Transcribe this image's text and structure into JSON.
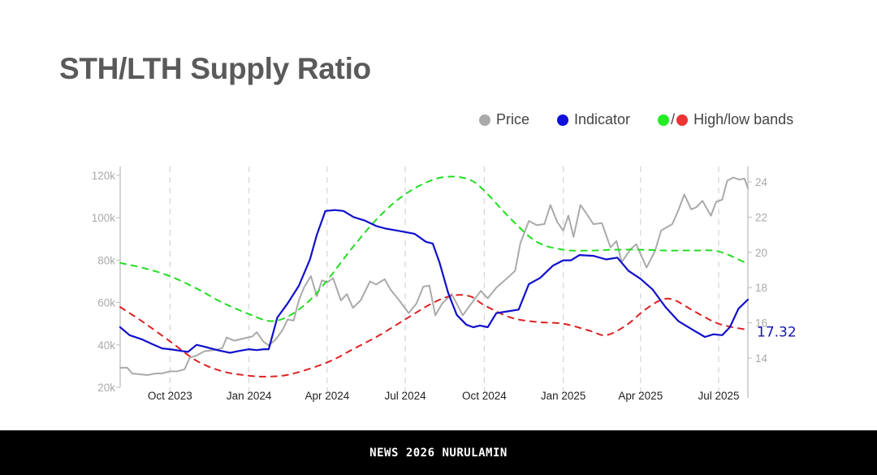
{
  "title": "STH/LTH Supply Ratio",
  "legend": [
    {
      "label": "Price",
      "color": "#aaaaaa"
    },
    {
      "label": "Indicator",
      "color": "#1010dd"
    },
    {
      "label": "High/low bands",
      "color_high": "#22ee22",
      "color_low": "#ee3333"
    }
  ],
  "legend_slash": "/",
  "banner": "NEWS 2026 NURULAMIN",
  "chart_data": {
    "type": "line",
    "title": "STH/LTH Supply Ratio",
    "x_range": [
      "2023-08-04",
      "2025-08-04"
    ],
    "x_ticks": [
      {
        "date": "2023-10-01",
        "label": "Oct 2023"
      },
      {
        "date": "2024-01-01",
        "label": "Jan 2024"
      },
      {
        "date": "2024-04-01",
        "label": "Apr 2024"
      },
      {
        "date": "2024-07-01",
        "label": "Jul 2024"
      },
      {
        "date": "2024-10-01",
        "label": "Oct 2024"
      },
      {
        "date": "2025-01-01",
        "label": "Jan 2025"
      },
      {
        "date": "2025-04-01",
        "label": "Apr 2025"
      },
      {
        "date": "2025-07-01",
        "label": "Jul 2025"
      }
    ],
    "y_left": {
      "label": "Price",
      "range": [
        20000,
        120000
      ],
      "ticks": [
        20000,
        40000,
        60000,
        80000,
        100000,
        120000
      ],
      "tick_labels": [
        "20k",
        "40k",
        "60k",
        "80k",
        "100k",
        "120k"
      ]
    },
    "y_right": {
      "label": "Indicator",
      "range": [
        12.4,
        24.8
      ],
      "ticks": [
        14,
        16,
        18,
        20,
        22,
        24
      ],
      "tick_labels": [
        "14",
        "16",
        "18",
        "20",
        "22",
        "24"
      ]
    },
    "grid": "vertical-dashed",
    "legend_position": "top-right",
    "last_value_label": "17.32",
    "series": [
      {
        "name": "Price",
        "axis": "left",
        "color": "#aaaaaa",
        "style": "solid",
        "points": [
          [
            "2023-08-04",
            29200
          ],
          [
            "2023-08-12",
            29300
          ],
          [
            "2023-08-18",
            26500
          ],
          [
            "2023-08-28",
            26100
          ],
          [
            "2023-09-05",
            25800
          ],
          [
            "2023-09-14",
            26500
          ],
          [
            "2023-09-22",
            26600
          ],
          [
            "2023-10-01",
            27500
          ],
          [
            "2023-10-10",
            27600
          ],
          [
            "2023-10-18",
            28500
          ],
          [
            "2023-10-24",
            34000
          ],
          [
            "2023-11-01",
            35000
          ],
          [
            "2023-11-10",
            37000
          ],
          [
            "2023-11-20",
            37500
          ],
          [
            "2023-12-01",
            38500
          ],
          [
            "2023-12-06",
            43500
          ],
          [
            "2023-12-15",
            42000
          ],
          [
            "2023-12-25",
            43000
          ],
          [
            "2024-01-05",
            44000
          ],
          [
            "2024-01-10",
            46000
          ],
          [
            "2024-01-18",
            41500
          ],
          [
            "2024-01-24",
            39800
          ],
          [
            "2024-02-01",
            42500
          ],
          [
            "2024-02-09",
            47000
          ],
          [
            "2024-02-15",
            52000
          ],
          [
            "2024-02-22",
            51500
          ],
          [
            "2024-02-28",
            61000
          ],
          [
            "2024-03-05",
            67000
          ],
          [
            "2024-03-13",
            72500
          ],
          [
            "2024-03-20",
            63000
          ],
          [
            "2024-03-26",
            70500
          ],
          [
            "2024-04-01",
            69500
          ],
          [
            "2024-04-08",
            71500
          ],
          [
            "2024-04-17",
            61000
          ],
          [
            "2024-04-24",
            64000
          ],
          [
            "2024-05-01",
            57500
          ],
          [
            "2024-05-10",
            61000
          ],
          [
            "2024-05-21",
            70000
          ],
          [
            "2024-05-28",
            68500
          ],
          [
            "2024-06-07",
            71000
          ],
          [
            "2024-06-14",
            66000
          ],
          [
            "2024-06-24",
            61000
          ],
          [
            "2024-07-05",
            55000
          ],
          [
            "2024-07-14",
            59500
          ],
          [
            "2024-07-22",
            67500
          ],
          [
            "2024-07-29",
            68000
          ],
          [
            "2024-08-05",
            54000
          ],
          [
            "2024-08-13",
            59500
          ],
          [
            "2024-08-24",
            64000
          ],
          [
            "2024-09-06",
            54000
          ],
          [
            "2024-09-15",
            59000
          ],
          [
            "2024-09-27",
            65500
          ],
          [
            "2024-10-05",
            62000
          ],
          [
            "2024-10-15",
            67000
          ],
          [
            "2024-10-29",
            72000
          ],
          [
            "2024-11-06",
            75000
          ],
          [
            "2024-11-12",
            88000
          ],
          [
            "2024-11-22",
            98500
          ],
          [
            "2024-12-01",
            96500
          ],
          [
            "2024-12-10",
            97000
          ],
          [
            "2024-12-17",
            106000
          ],
          [
            "2024-12-25",
            98000
          ],
          [
            "2025-01-01",
            94000
          ],
          [
            "2025-01-07",
            101000
          ],
          [
            "2025-01-13",
            91000
          ],
          [
            "2025-01-21",
            106000
          ],
          [
            "2025-01-28",
            102000
          ],
          [
            "2025-02-05",
            97000
          ],
          [
            "2025-02-15",
            97500
          ],
          [
            "2025-02-25",
            86000
          ],
          [
            "2025-03-04",
            89000
          ],
          [
            "2025-03-10",
            79000
          ],
          [
            "2025-03-20",
            85000
          ],
          [
            "2025-03-27",
            87500
          ],
          [
            "2025-04-08",
            76500
          ],
          [
            "2025-04-18",
            84500
          ],
          [
            "2025-04-25",
            94000
          ],
          [
            "2025-05-08",
            97000
          ],
          [
            "2025-05-15",
            103500
          ],
          [
            "2025-05-22",
            111000
          ],
          [
            "2025-05-30",
            104000
          ],
          [
            "2025-06-05",
            105000
          ],
          [
            "2025-06-12",
            108000
          ],
          [
            "2025-06-22",
            101000
          ],
          [
            "2025-06-28",
            107500
          ],
          [
            "2025-07-05",
            108500
          ],
          [
            "2025-07-11",
            117500
          ],
          [
            "2025-07-18",
            119000
          ],
          [
            "2025-07-25",
            118000
          ],
          [
            "2025-07-31",
            118500
          ],
          [
            "2025-08-04",
            114000
          ]
        ]
      },
      {
        "name": "Indicator",
        "axis": "right",
        "color": "#1010cc",
        "style": "solid",
        "points": [
          [
            "2023-08-04",
            15.75
          ],
          [
            "2023-08-15",
            15.3
          ],
          [
            "2023-08-30",
            15.05
          ],
          [
            "2023-09-10",
            14.8
          ],
          [
            "2023-09-22",
            14.55
          ],
          [
            "2023-10-01",
            14.5
          ],
          [
            "2023-10-15",
            14.4
          ],
          [
            "2023-10-22",
            14.35
          ],
          [
            "2023-11-01",
            14.75
          ],
          [
            "2023-11-10",
            14.65
          ],
          [
            "2023-11-25",
            14.45
          ],
          [
            "2023-12-10",
            14.3
          ],
          [
            "2023-12-20",
            14.4
          ],
          [
            "2024-01-01",
            14.5
          ],
          [
            "2024-01-10",
            14.45
          ],
          [
            "2024-01-18",
            14.5
          ],
          [
            "2024-01-24",
            14.5
          ],
          [
            "2024-02-03",
            16.3
          ],
          [
            "2024-02-15",
            17.1
          ],
          [
            "2024-02-28",
            18.1
          ],
          [
            "2024-03-12",
            19.6
          ],
          [
            "2024-03-20",
            21.0
          ],
          [
            "2024-03-30",
            22.35
          ],
          [
            "2024-04-10",
            22.4
          ],
          [
            "2024-04-20",
            22.35
          ],
          [
            "2024-05-02",
            22.0
          ],
          [
            "2024-05-15",
            21.8
          ],
          [
            "2024-05-28",
            21.5
          ],
          [
            "2024-06-08",
            21.35
          ],
          [
            "2024-06-20",
            21.25
          ],
          [
            "2024-07-01",
            21.15
          ],
          [
            "2024-07-12",
            21.05
          ],
          [
            "2024-07-25",
            20.6
          ],
          [
            "2024-08-02",
            20.5
          ],
          [
            "2024-08-10",
            19.4
          ],
          [
            "2024-08-20",
            17.7
          ],
          [
            "2024-08-30",
            16.45
          ],
          [
            "2024-09-10",
            15.9
          ],
          [
            "2024-09-18",
            15.75
          ],
          [
            "2024-09-26",
            15.85
          ],
          [
            "2024-10-05",
            15.75
          ],
          [
            "2024-10-15",
            16.55
          ],
          [
            "2024-10-28",
            16.65
          ],
          [
            "2024-11-10",
            16.75
          ],
          [
            "2024-11-22",
            18.2
          ],
          [
            "2024-12-05",
            18.55
          ],
          [
            "2024-12-20",
            19.25
          ],
          [
            "2025-01-01",
            19.55
          ],
          [
            "2025-01-10",
            19.55
          ],
          [
            "2025-01-20",
            19.85
          ],
          [
            "2025-02-05",
            19.8
          ],
          [
            "2025-02-20",
            19.6
          ],
          [
            "2025-03-05",
            19.7
          ],
          [
            "2025-03-18",
            18.95
          ],
          [
            "2025-04-01",
            18.5
          ],
          [
            "2025-04-15",
            17.9
          ],
          [
            "2025-04-30",
            16.9
          ],
          [
            "2025-05-15",
            16.1
          ],
          [
            "2025-06-01",
            15.6
          ],
          [
            "2025-06-15",
            15.2
          ],
          [
            "2025-06-25",
            15.35
          ],
          [
            "2025-07-05",
            15.3
          ],
          [
            "2025-07-14",
            15.75
          ],
          [
            "2025-07-24",
            16.8
          ],
          [
            "2025-08-04",
            17.32
          ]
        ]
      },
      {
        "name": "High band",
        "axis": "right",
        "color": "#22dd22",
        "style": "dashed",
        "points": [
          [
            "2023-08-04",
            19.4
          ],
          [
            "2023-09-01",
            19.1
          ],
          [
            "2023-10-01",
            18.65
          ],
          [
            "2023-11-01",
            17.95
          ],
          [
            "2023-12-01",
            17.15
          ],
          [
            "2024-01-01",
            16.5
          ],
          [
            "2024-01-25",
            16.1
          ],
          [
            "2024-02-15",
            16.35
          ],
          [
            "2024-03-10",
            17.2
          ],
          [
            "2024-04-01",
            18.4
          ],
          [
            "2024-05-01",
            20.3
          ],
          [
            "2024-06-01",
            22.05
          ],
          [
            "2024-07-01",
            23.3
          ],
          [
            "2024-08-01",
            24.1
          ],
          [
            "2024-08-25",
            24.3
          ],
          [
            "2024-09-15",
            24.1
          ],
          [
            "2024-10-01",
            23.5
          ],
          [
            "2024-11-01",
            21.9
          ],
          [
            "2024-12-01",
            20.6
          ],
          [
            "2025-01-01",
            20.15
          ],
          [
            "2025-02-01",
            20.1
          ],
          [
            "2025-03-01",
            20.15
          ],
          [
            "2025-04-01",
            20.15
          ],
          [
            "2025-05-01",
            20.1
          ],
          [
            "2025-06-01",
            20.1
          ],
          [
            "2025-07-01",
            20.05
          ],
          [
            "2025-08-04",
            19.35
          ]
        ]
      },
      {
        "name": "Low band",
        "axis": "right",
        "color": "#dd2222",
        "style": "dashed",
        "points": [
          [
            "2023-08-04",
            16.9
          ],
          [
            "2023-09-01",
            16.0
          ],
          [
            "2023-10-01",
            14.95
          ],
          [
            "2023-11-01",
            13.85
          ],
          [
            "2023-12-01",
            13.25
          ],
          [
            "2024-01-01",
            13.0
          ],
          [
            "2024-01-25",
            12.95
          ],
          [
            "2024-02-20",
            13.1
          ],
          [
            "2024-04-01",
            13.75
          ],
          [
            "2024-05-01",
            14.5
          ],
          [
            "2024-06-01",
            15.3
          ],
          [
            "2024-07-01",
            16.2
          ],
          [
            "2024-08-01",
            17.1
          ],
          [
            "2024-08-25",
            17.55
          ],
          [
            "2024-09-15",
            17.5
          ],
          [
            "2024-10-01",
            17.0
          ],
          [
            "2024-11-01",
            16.3
          ],
          [
            "2024-12-01",
            16.05
          ],
          [
            "2025-01-01",
            15.95
          ],
          [
            "2025-02-01",
            15.55
          ],
          [
            "2025-02-20",
            15.3
          ],
          [
            "2025-03-15",
            15.85
          ],
          [
            "2025-04-05",
            16.7
          ],
          [
            "2025-04-25",
            17.3
          ],
          [
            "2025-05-10",
            17.3
          ],
          [
            "2025-06-01",
            16.7
          ],
          [
            "2025-07-01",
            15.95
          ],
          [
            "2025-08-04",
            15.6
          ]
        ]
      }
    ]
  }
}
